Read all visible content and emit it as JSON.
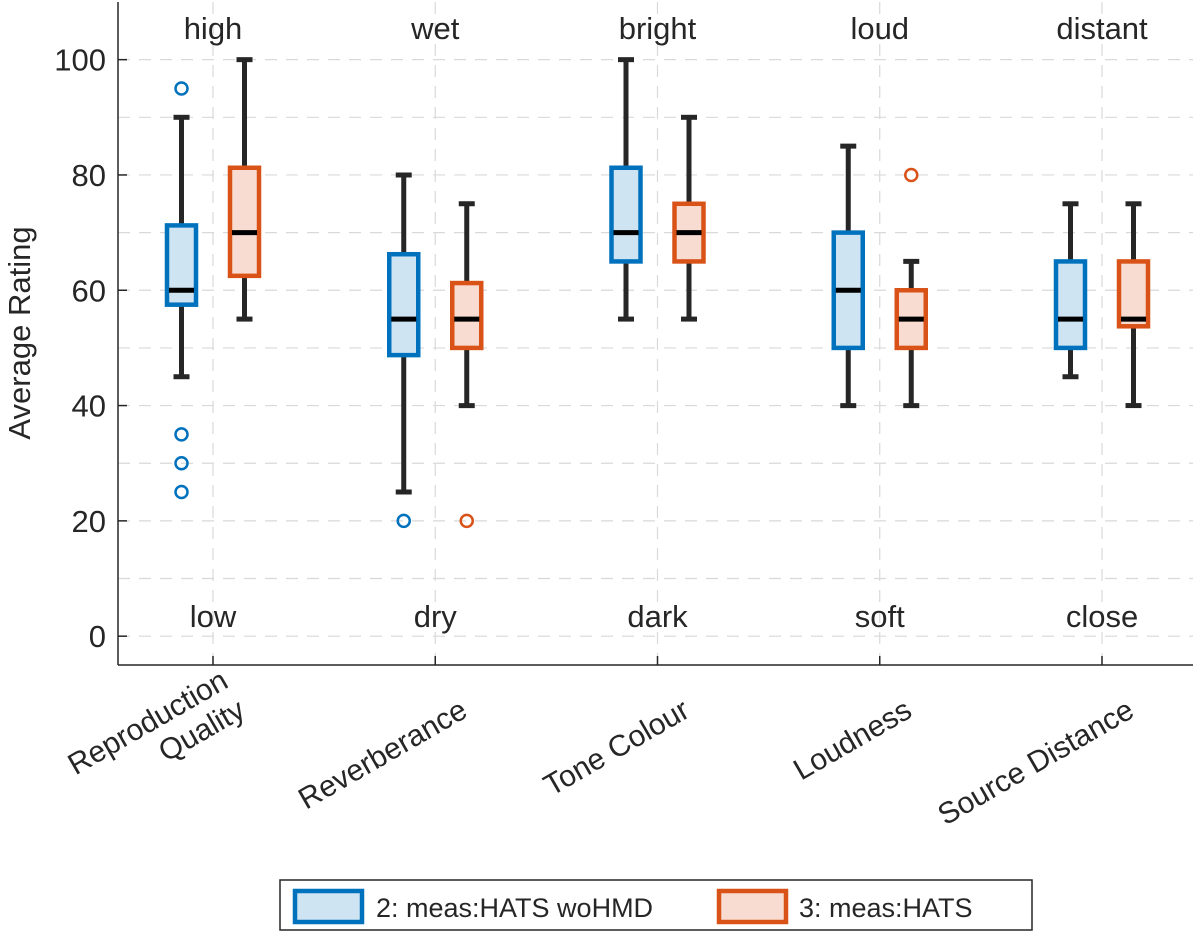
{
  "chart_data": {
    "type": "boxplot",
    "title": "",
    "xlabel": "",
    "ylabel": "Average Rating",
    "ylim": [
      -5,
      110
    ],
    "yticks": [
      0,
      20,
      40,
      60,
      80,
      100
    ],
    "grid": true,
    "legend_position": "bottom",
    "categories": [
      {
        "label_lines": [
          "Reproduction",
          "Quality"
        ],
        "high": "high",
        "low": "low"
      },
      {
        "label_lines": [
          "Reverberance"
        ],
        "high": "wet",
        "low": "dry"
      },
      {
        "label_lines": [
          "Tone Colour"
        ],
        "high": "bright",
        "low": "dark"
      },
      {
        "label_lines": [
          "Loudness"
        ],
        "high": "loud",
        "low": "soft"
      },
      {
        "label_lines": [
          "Source Distance"
        ],
        "high": "distant",
        "low": "close"
      }
    ],
    "series": [
      {
        "name": "2: meas:HATS woHMD",
        "edge_color": "#0072BD",
        "fill_color": "#cfe4f3",
        "boxes": [
          {
            "whisker_low": 45,
            "q1": 57.5,
            "median": 60,
            "q3": 71.25,
            "whisker_high": 90,
            "outliers": [
              95,
              35,
              30,
              25
            ]
          },
          {
            "whisker_low": 25,
            "q1": 48.75,
            "median": 55,
            "q3": 66.25,
            "whisker_high": 80,
            "outliers": [
              20
            ]
          },
          {
            "whisker_low": 55,
            "q1": 65,
            "median": 70,
            "q3": 81.25,
            "whisker_high": 100,
            "outliers": []
          },
          {
            "whisker_low": 40,
            "q1": 50,
            "median": 60,
            "q3": 70,
            "whisker_high": 85,
            "outliers": []
          },
          {
            "whisker_low": 45,
            "q1": 50,
            "median": 55,
            "q3": 65,
            "whisker_high": 75,
            "outliers": []
          }
        ]
      },
      {
        "name": "3: meas:HATS",
        "edge_color": "#D95319",
        "fill_color": "#f9dcd1",
        "boxes": [
          {
            "whisker_low": 55,
            "q1": 62.5,
            "median": 70,
            "q3": 81.25,
            "whisker_high": 100,
            "outliers": []
          },
          {
            "whisker_low": 40,
            "q1": 50,
            "median": 55,
            "q3": 61.25,
            "whisker_high": 75,
            "outliers": [
              20
            ]
          },
          {
            "whisker_low": 55,
            "q1": 65,
            "median": 70,
            "q3": 75,
            "whisker_high": 90,
            "outliers": []
          },
          {
            "whisker_low": 40,
            "q1": 50,
            "median": 55,
            "q3": 60,
            "whisker_high": 65,
            "outliers": [
              80
            ]
          },
          {
            "whisker_low": 40,
            "q1": 53.75,
            "median": 55,
            "q3": 65,
            "whisker_high": 75,
            "outliers": []
          }
        ]
      }
    ]
  }
}
